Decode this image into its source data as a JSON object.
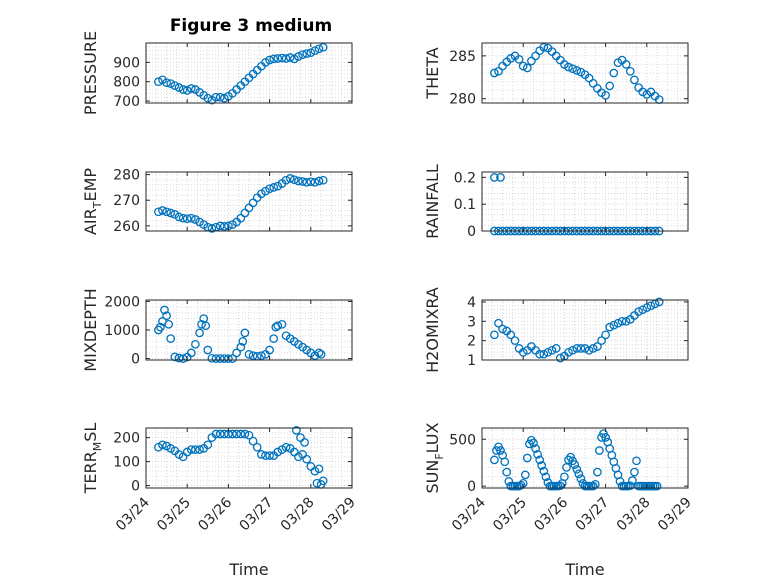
{
  "figure_title": "Figure 3 medium",
  "colors": {
    "marker": "#0072BD",
    "axis": "#262626",
    "grid": "#d9d9d9",
    "background": "#ffffff"
  },
  "x_axis_label": "Time",
  "x_tick_labels": [
    "03/24",
    "03/25",
    "03/26",
    "03/27",
    "03/28",
    "03/29"
  ],
  "chart_data": [
    {
      "type": "scatter",
      "ylabel": "PRESSURE",
      "ylim": [
        690,
        1000
      ],
      "yticks": [
        700,
        800,
        900
      ],
      "ytick_labels": [
        "700",
        "800",
        "900"
      ],
      "xlim": [
        0,
        5
      ],
      "grid": true,
      "marker": "circle",
      "x": [
        0.3,
        0.4,
        0.5,
        0.6,
        0.7,
        0.8,
        0.9,
        1.0,
        1.1,
        1.2,
        1.3,
        1.4,
        1.5,
        1.6,
        1.7,
        1.8,
        1.9,
        2.0,
        2.1,
        2.2,
        2.3,
        2.4,
        2.5,
        2.6,
        2.7,
        2.8,
        2.9,
        3.0,
        3.1,
        3.2,
        3.3,
        3.4,
        3.5,
        3.6,
        3.7,
        3.8,
        3.9,
        4.0,
        4.1,
        4.2,
        4.3
      ],
      "y": [
        800,
        810,
        795,
        790,
        780,
        770,
        760,
        755,
        765,
        760,
        745,
        730,
        715,
        705,
        720,
        720,
        715,
        725,
        740,
        760,
        780,
        800,
        820,
        840,
        860,
        880,
        900,
        912,
        918,
        920,
        922,
        920,
        925,
        918,
        930,
        940,
        945,
        950,
        960,
        970,
        978
      ]
    },
    {
      "type": "scatter",
      "ylabel": "THETA",
      "ylim": [
        279.5,
        286.5
      ],
      "yticks": [
        280,
        285
      ],
      "ytick_labels": [
        "280",
        "285"
      ],
      "xlim": [
        0,
        5
      ],
      "grid": true,
      "marker": "circle",
      "x": [
        0.3,
        0.4,
        0.5,
        0.6,
        0.7,
        0.8,
        0.9,
        1.0,
        1.1,
        1.2,
        1.3,
        1.4,
        1.5,
        1.6,
        1.7,
        1.8,
        1.9,
        2.0,
        2.1,
        2.2,
        2.3,
        2.4,
        2.5,
        2.6,
        2.7,
        2.8,
        2.9,
        3.0,
        3.1,
        3.2,
        3.3,
        3.4,
        3.5,
        3.6,
        3.7,
        3.8,
        3.9,
        4.0,
        4.1,
        4.2,
        4.3
      ],
      "y": [
        283.0,
        283.2,
        283.8,
        284.3,
        284.7,
        285.0,
        284.6,
        283.8,
        283.6,
        284.4,
        285.0,
        285.6,
        286.0,
        285.9,
        285.5,
        285.0,
        284.5,
        284.0,
        283.7,
        283.5,
        283.3,
        283.1,
        282.8,
        282.4,
        281.8,
        281.2,
        280.7,
        280.4,
        281.5,
        283.0,
        284.2,
        284.5,
        284.0,
        283.2,
        282.2,
        281.3,
        280.8,
        280.5,
        280.8,
        280.3,
        279.9
      ]
    },
    {
      "type": "scatter",
      "ylabel": "AIR_TEMP",
      "ylim": [
        258,
        281
      ],
      "yticks": [
        260,
        270,
        280
      ],
      "ytick_labels": [
        "260",
        "270",
        "280"
      ],
      "xlim": [
        0,
        5
      ],
      "grid": true,
      "marker": "circle",
      "x": [
        0.3,
        0.4,
        0.5,
        0.6,
        0.7,
        0.8,
        0.9,
        1.0,
        1.1,
        1.2,
        1.3,
        1.4,
        1.5,
        1.6,
        1.7,
        1.8,
        1.9,
        2.0,
        2.1,
        2.2,
        2.3,
        2.4,
        2.5,
        2.6,
        2.7,
        2.8,
        2.9,
        3.0,
        3.1,
        3.2,
        3.3,
        3.4,
        3.5,
        3.6,
        3.7,
        3.8,
        3.9,
        4.0,
        4.1,
        4.2,
        4.3
      ],
      "y": [
        265.5,
        266.0,
        265.5,
        265.0,
        264.5,
        263.5,
        263.0,
        262.8,
        263.0,
        262.5,
        261.5,
        260.5,
        259.5,
        259.0,
        259.5,
        260.0,
        259.8,
        260.0,
        260.5,
        261.5,
        263.0,
        265.0,
        267.0,
        269.0,
        271.0,
        272.5,
        273.5,
        274.5,
        275.0,
        275.5,
        276.5,
        277.8,
        278.5,
        278.0,
        277.5,
        277.3,
        277.0,
        277.2,
        277.0,
        277.5,
        277.8
      ]
    },
    {
      "type": "scatter",
      "ylabel": "RAINFALL",
      "ylim": [
        0,
        0.22
      ],
      "yticks": [
        0,
        0.1,
        0.2
      ],
      "ytick_labels": [
        "0",
        "0.1",
        "0.2"
      ],
      "xlim": [
        0,
        5
      ],
      "grid": true,
      "marker": "circle",
      "x": [
        0.3,
        0.4,
        0.5,
        0.6,
        0.7,
        0.8,
        0.9,
        1.0,
        1.1,
        1.2,
        1.3,
        1.4,
        1.5,
        1.6,
        1.7,
        1.8,
        1.9,
        2.0,
        2.1,
        2.2,
        2.3,
        2.4,
        2.5,
        2.6,
        2.7,
        2.8,
        2.9,
        3.0,
        3.1,
        3.2,
        3.3,
        3.4,
        3.5,
        3.6,
        3.7,
        3.8,
        3.9,
        4.0,
        4.1,
        4.2,
        4.3,
        0.3,
        0.45
      ],
      "y": [
        0,
        0,
        0,
        0,
        0,
        0,
        0,
        0,
        0,
        0,
        0,
        0,
        0,
        0,
        0,
        0,
        0,
        0,
        0,
        0,
        0,
        0,
        0,
        0,
        0,
        0,
        0,
        0,
        0,
        0,
        0,
        0,
        0,
        0,
        0,
        0,
        0,
        0,
        0,
        0,
        0,
        0.2,
        0.2
      ]
    },
    {
      "type": "scatter",
      "ylabel": "MIXDEPTH",
      "ylim": [
        -50,
        2050
      ],
      "yticks": [
        0,
        1000,
        2000
      ],
      "ytick_labels": [
        "0",
        "1000",
        "2000"
      ],
      "xlim": [
        0,
        5
      ],
      "grid": true,
      "marker": "circle",
      "x": [
        0.3,
        0.35,
        0.4,
        0.45,
        0.5,
        0.55,
        0.6,
        0.7,
        0.8,
        0.9,
        1.0,
        1.1,
        1.2,
        1.3,
        1.35,
        1.4,
        1.45,
        1.5,
        1.6,
        1.7,
        1.8,
        1.9,
        2.0,
        2.1,
        2.2,
        2.3,
        2.35,
        2.4,
        2.5,
        2.6,
        2.7,
        2.8,
        2.9,
        3.0,
        3.1,
        3.15,
        3.2,
        3.3,
        3.4,
        3.5,
        3.6,
        3.7,
        3.8,
        3.9,
        4.0,
        4.1,
        4.2,
        4.25
      ],
      "y": [
        1000,
        1100,
        1300,
        1700,
        1500,
        1200,
        700,
        60,
        20,
        0,
        50,
        200,
        500,
        900,
        1200,
        1400,
        1150,
        300,
        10,
        0,
        0,
        0,
        0,
        0,
        200,
        400,
        600,
        900,
        150,
        100,
        80,
        100,
        150,
        300,
        700,
        1100,
        1150,
        1200,
        800,
        700,
        600,
        500,
        400,
        300,
        200,
        100,
        200,
        150
      ]
    },
    {
      "type": "scatter",
      "ylabel": "H2OMIXRA",
      "ylim": [
        1,
        4.1
      ],
      "yticks": [
        1,
        2,
        3,
        4
      ],
      "ytick_labels": [
        "1",
        "2",
        "3",
        "4"
      ],
      "xlim": [
        0,
        5
      ],
      "grid": true,
      "marker": "circle",
      "x": [
        0.3,
        0.4,
        0.5,
        0.6,
        0.7,
        0.8,
        0.9,
        1.0,
        1.1,
        1.2,
        1.3,
        1.4,
        1.5,
        1.6,
        1.7,
        1.8,
        1.9,
        2.0,
        2.1,
        2.2,
        2.3,
        2.4,
        2.5,
        2.6,
        2.7,
        2.8,
        2.9,
        3.0,
        3.1,
        3.2,
        3.3,
        3.4,
        3.5,
        3.6,
        3.7,
        3.8,
        3.9,
        4.0,
        4.1,
        4.2,
        4.3
      ],
      "y": [
        2.3,
        2.9,
        2.6,
        2.5,
        2.3,
        2.0,
        1.6,
        1.4,
        1.5,
        1.7,
        1.5,
        1.3,
        1.3,
        1.4,
        1.5,
        1.6,
        1.1,
        1.2,
        1.4,
        1.5,
        1.6,
        1.6,
        1.6,
        1.5,
        1.6,
        1.7,
        2.0,
        2.3,
        2.7,
        2.8,
        2.9,
        3.0,
        3.0,
        3.1,
        3.3,
        3.5,
        3.6,
        3.7,
        3.8,
        3.9,
        4.0
      ]
    },
    {
      "type": "scatter",
      "ylabel": "TERR_MSL",
      "ylim": [
        -10,
        240
      ],
      "yticks": [
        0,
        100,
        200
      ],
      "ytick_labels": [
        "0",
        "100",
        "200"
      ],
      "xlim": [
        0,
        5
      ],
      "grid": true,
      "marker": "circle",
      "x": [
        0.3,
        0.4,
        0.5,
        0.6,
        0.7,
        0.8,
        0.9,
        1.0,
        1.1,
        1.2,
        1.3,
        1.4,
        1.5,
        1.6,
        1.7,
        1.8,
        1.9,
        2.0,
        2.1,
        2.2,
        2.3,
        2.4,
        2.5,
        2.6,
        2.7,
        2.8,
        2.9,
        3.0,
        3.1,
        3.2,
        3.3,
        3.4,
        3.5,
        3.6,
        3.7,
        3.8,
        3.9,
        4.0,
        4.1,
        4.2,
        4.3,
        3.65,
        3.75,
        3.85,
        4.15,
        4.25
      ],
      "y": [
        160,
        170,
        165,
        155,
        145,
        130,
        120,
        140,
        150,
        150,
        150,
        155,
        170,
        200,
        215,
        215,
        215,
        215,
        215,
        215,
        215,
        215,
        210,
        185,
        160,
        130,
        125,
        125,
        125,
        140,
        150,
        160,
        155,
        140,
        120,
        130,
        110,
        80,
        60,
        70,
        20,
        230,
        200,
        180,
        10,
        5
      ]
    },
    {
      "type": "scatter",
      "ylabel": "SUN_FLUX",
      "ylim": [
        -20,
        620
      ],
      "yticks": [
        0,
        500
      ],
      "ytick_labels": [
        "0",
        "500"
      ],
      "xlim": [
        0,
        5
      ],
      "grid": true,
      "marker": "circle",
      "x": [
        0.3,
        0.35,
        0.4,
        0.45,
        0.5,
        0.55,
        0.6,
        0.65,
        0.7,
        0.75,
        0.8,
        0.85,
        0.9,
        0.95,
        1.0,
        1.05,
        1.1,
        1.15,
        1.2,
        1.25,
        1.3,
        1.35,
        1.4,
        1.45,
        1.5,
        1.55,
        1.6,
        1.65,
        1.7,
        1.75,
        1.8,
        1.85,
        1.9,
        1.95,
        2.0,
        2.05,
        2.1,
        2.15,
        2.2,
        2.25,
        2.3,
        2.35,
        2.4,
        2.45,
        2.5,
        2.55,
        2.6,
        2.65,
        2.7,
        2.75,
        2.8,
        2.85,
        2.9,
        2.95,
        3.0,
        3.05,
        3.1,
        3.15,
        3.2,
        3.25,
        3.3,
        3.35,
        3.4,
        3.45,
        3.5,
        3.55,
        3.6,
        3.65,
        3.7,
        3.75,
        3.8,
        3.85,
        3.9,
        3.95,
        4.0,
        4.05,
        4.1,
        4.15,
        4.2,
        4.25
      ],
      "y": [
        280,
        380,
        420,
        380,
        330,
        260,
        150,
        50,
        0,
        0,
        0,
        0,
        0,
        10,
        30,
        120,
        300,
        450,
        490,
        460,
        400,
        340,
        280,
        220,
        160,
        100,
        40,
        0,
        0,
        0,
        0,
        0,
        5,
        30,
        100,
        200,
        280,
        310,
        270,
        230,
        180,
        130,
        80,
        30,
        0,
        0,
        0,
        0,
        0,
        20,
        150,
        380,
        520,
        560,
        520,
        470,
        400,
        330,
        260,
        190,
        120,
        50,
        0,
        0,
        0,
        0,
        5,
        60,
        150,
        270,
        0,
        0,
        0,
        0,
        0,
        0,
        0,
        0,
        0,
        0
      ]
    }
  ]
}
